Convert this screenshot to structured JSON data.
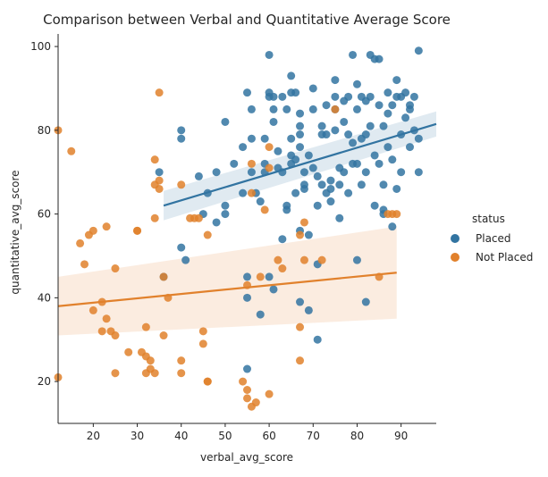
{
  "chart_data": {
    "type": "scatter",
    "title": "Comparison between Verbal and Quantitative Average Score",
    "xlabel": "verbal_avg_score",
    "ylabel": "quantitative_avg_score",
    "xlim": [
      12,
      98
    ],
    "ylim": [
      10,
      103
    ],
    "xticks": [
      20,
      30,
      40,
      50,
      60,
      70,
      80,
      90
    ],
    "yticks": [
      20,
      40,
      60,
      80,
      100
    ],
    "legend": {
      "title": "status",
      "placement": "right",
      "entries": [
        "Placed",
        "Not Placed"
      ]
    },
    "series": [
      {
        "name": "Placed",
        "color": "#3274a1",
        "points": [
          [
            36,
            45
          ],
          [
            40,
            80
          ],
          [
            40,
            78
          ],
          [
            40,
            52
          ],
          [
            41,
            49
          ],
          [
            44,
            69
          ],
          [
            45,
            60
          ],
          [
            46,
            65
          ],
          [
            48,
            70
          ],
          [
            50,
            62
          ],
          [
            50,
            60
          ],
          [
            50,
            82
          ],
          [
            54,
            76
          ],
          [
            54,
            65
          ],
          [
            55,
            89
          ],
          [
            55,
            40
          ],
          [
            55,
            23
          ],
          [
            55,
            45
          ],
          [
            56,
            85
          ],
          [
            56,
            78
          ],
          [
            56,
            70
          ],
          [
            57,
            65
          ],
          [
            58,
            36
          ],
          [
            58,
            63
          ],
          [
            59,
            70
          ],
          [
            59,
            72
          ],
          [
            60,
            98
          ],
          [
            60,
            89
          ],
          [
            60,
            88
          ],
          [
            60,
            45
          ],
          [
            61,
            88
          ],
          [
            61,
            85
          ],
          [
            61,
            82
          ],
          [
            61,
            42
          ],
          [
            62,
            71
          ],
          [
            62,
            75
          ],
          [
            63,
            70
          ],
          [
            63,
            54
          ],
          [
            64,
            85
          ],
          [
            64,
            62
          ],
          [
            64,
            61
          ],
          [
            65,
            93
          ],
          [
            65,
            89
          ],
          [
            65,
            78
          ],
          [
            65,
            74
          ],
          [
            65,
            72
          ],
          [
            66,
            65
          ],
          [
            66,
            73
          ],
          [
            67,
            84
          ],
          [
            67,
            81
          ],
          [
            67,
            79
          ],
          [
            67,
            76
          ],
          [
            67,
            56
          ],
          [
            67,
            39
          ],
          [
            68,
            70
          ],
          [
            68,
            67
          ],
          [
            68,
            66
          ],
          [
            69,
            74
          ],
          [
            69,
            55
          ],
          [
            69,
            37
          ],
          [
            70,
            90
          ],
          [
            70,
            71
          ],
          [
            71,
            69
          ],
          [
            71,
            62
          ],
          [
            71,
            48
          ],
          [
            71,
            30
          ],
          [
            72,
            81
          ],
          [
            72,
            79
          ],
          [
            72,
            67
          ],
          [
            73,
            86
          ],
          [
            73,
            79
          ],
          [
            73,
            65
          ],
          [
            74,
            68
          ],
          [
            74,
            66
          ],
          [
            74,
            63
          ],
          [
            75,
            92
          ],
          [
            75,
            88
          ],
          [
            75,
            85
          ],
          [
            75,
            80
          ],
          [
            76,
            71
          ],
          [
            76,
            67
          ],
          [
            77,
            87
          ],
          [
            77,
            82
          ],
          [
            77,
            70
          ],
          [
            78,
            88
          ],
          [
            78,
            79
          ],
          [
            78,
            65
          ],
          [
            79,
            98
          ],
          [
            79,
            77
          ],
          [
            79,
            72
          ],
          [
            80,
            85
          ],
          [
            80,
            72
          ],
          [
            80,
            49
          ],
          [
            81,
            88
          ],
          [
            81,
            78
          ],
          [
            81,
            67
          ],
          [
            82,
            87
          ],
          [
            82,
            79
          ],
          [
            82,
            70
          ],
          [
            82,
            39
          ],
          [
            83,
            98
          ],
          [
            83,
            88
          ],
          [
            83,
            81
          ],
          [
            84,
            97
          ],
          [
            84,
            74
          ],
          [
            84,
            62
          ],
          [
            85,
            86
          ],
          [
            85,
            72
          ],
          [
            86,
            81
          ],
          [
            86,
            67
          ],
          [
            86,
            61
          ],
          [
            86,
            60
          ],
          [
            87,
            89
          ],
          [
            87,
            84
          ],
          [
            87,
            76
          ],
          [
            88,
            86
          ],
          [
            88,
            73
          ],
          [
            88,
            57
          ],
          [
            89,
            92
          ],
          [
            89,
            66
          ],
          [
            90,
            88
          ],
          [
            90,
            79
          ],
          [
            90,
            70
          ],
          [
            91,
            89
          ],
          [
            91,
            83
          ],
          [
            92,
            86
          ],
          [
            92,
            76
          ],
          [
            93,
            88
          ],
          [
            93,
            80
          ],
          [
            94,
            99
          ],
          [
            94,
            78
          ],
          [
            94,
            70
          ],
          [
            35,
            70
          ],
          [
            48,
            58
          ],
          [
            52,
            72
          ],
          [
            59,
            78
          ],
          [
            63,
            88
          ],
          [
            66,
            89
          ],
          [
            70,
            85
          ],
          [
            76,
            59
          ],
          [
            80,
            91
          ],
          [
            85,
            97
          ],
          [
            89,
            88
          ],
          [
            92,
            85
          ]
        ]
      },
      {
        "name": "Not Placed",
        "color": "#e1812c",
        "points": [
          [
            12,
            80
          ],
          [
            12,
            21
          ],
          [
            15,
            75
          ],
          [
            17,
            53
          ],
          [
            18,
            48
          ],
          [
            19,
            55
          ],
          [
            20,
            56
          ],
          [
            20,
            37
          ],
          [
            22,
            39
          ],
          [
            22,
            32
          ],
          [
            23,
            35
          ],
          [
            23,
            57
          ],
          [
            24,
            32
          ],
          [
            25,
            31
          ],
          [
            25,
            47
          ],
          [
            25,
            22
          ],
          [
            28,
            27
          ],
          [
            30,
            56
          ],
          [
            30,
            56
          ],
          [
            31,
            27
          ],
          [
            32,
            33
          ],
          [
            32,
            22
          ],
          [
            32,
            26
          ],
          [
            33,
            25
          ],
          [
            33,
            23
          ],
          [
            34,
            22
          ],
          [
            34,
            67
          ],
          [
            34,
            59
          ],
          [
            34,
            73
          ],
          [
            35,
            89
          ],
          [
            35,
            66
          ],
          [
            35,
            68
          ],
          [
            36,
            45
          ],
          [
            36,
            31
          ],
          [
            37,
            40
          ],
          [
            40,
            67
          ],
          [
            40,
            25
          ],
          [
            40,
            22
          ],
          [
            42,
            59
          ],
          [
            44,
            59
          ],
          [
            45,
            32
          ],
          [
            45,
            29
          ],
          [
            46,
            20
          ],
          [
            46,
            55
          ],
          [
            55,
            16
          ],
          [
            55,
            18
          ],
          [
            55,
            43
          ],
          [
            56,
            72
          ],
          [
            56,
            65
          ],
          [
            56,
            14
          ],
          [
            57,
            15
          ],
          [
            58,
            45
          ],
          [
            59,
            61
          ],
          [
            60,
            76
          ],
          [
            60,
            17
          ],
          [
            60,
            71
          ],
          [
            62,
            49
          ],
          [
            63,
            47
          ],
          [
            67,
            55
          ],
          [
            67,
            33
          ],
          [
            67,
            25
          ],
          [
            68,
            58
          ],
          [
            68,
            49
          ],
          [
            72,
            49
          ],
          [
            75,
            85
          ],
          [
            85,
            45
          ],
          [
            87,
            60
          ],
          [
            88,
            60
          ],
          [
            89,
            60
          ],
          [
            54,
            20
          ],
          [
            46,
            20
          ],
          [
            43,
            59
          ]
        ]
      }
    ],
    "regression": [
      {
        "series": "Placed",
        "x": [
          36,
          98
        ],
        "y": [
          62,
          81.5
        ],
        "band_halfwidth": [
          3.5,
          3
        ]
      },
      {
        "series": "Not Placed",
        "x": [
          12,
          89
        ],
        "y": [
          38,
          46
        ],
        "band_halfwidth": [
          7,
          11
        ]
      }
    ]
  }
}
